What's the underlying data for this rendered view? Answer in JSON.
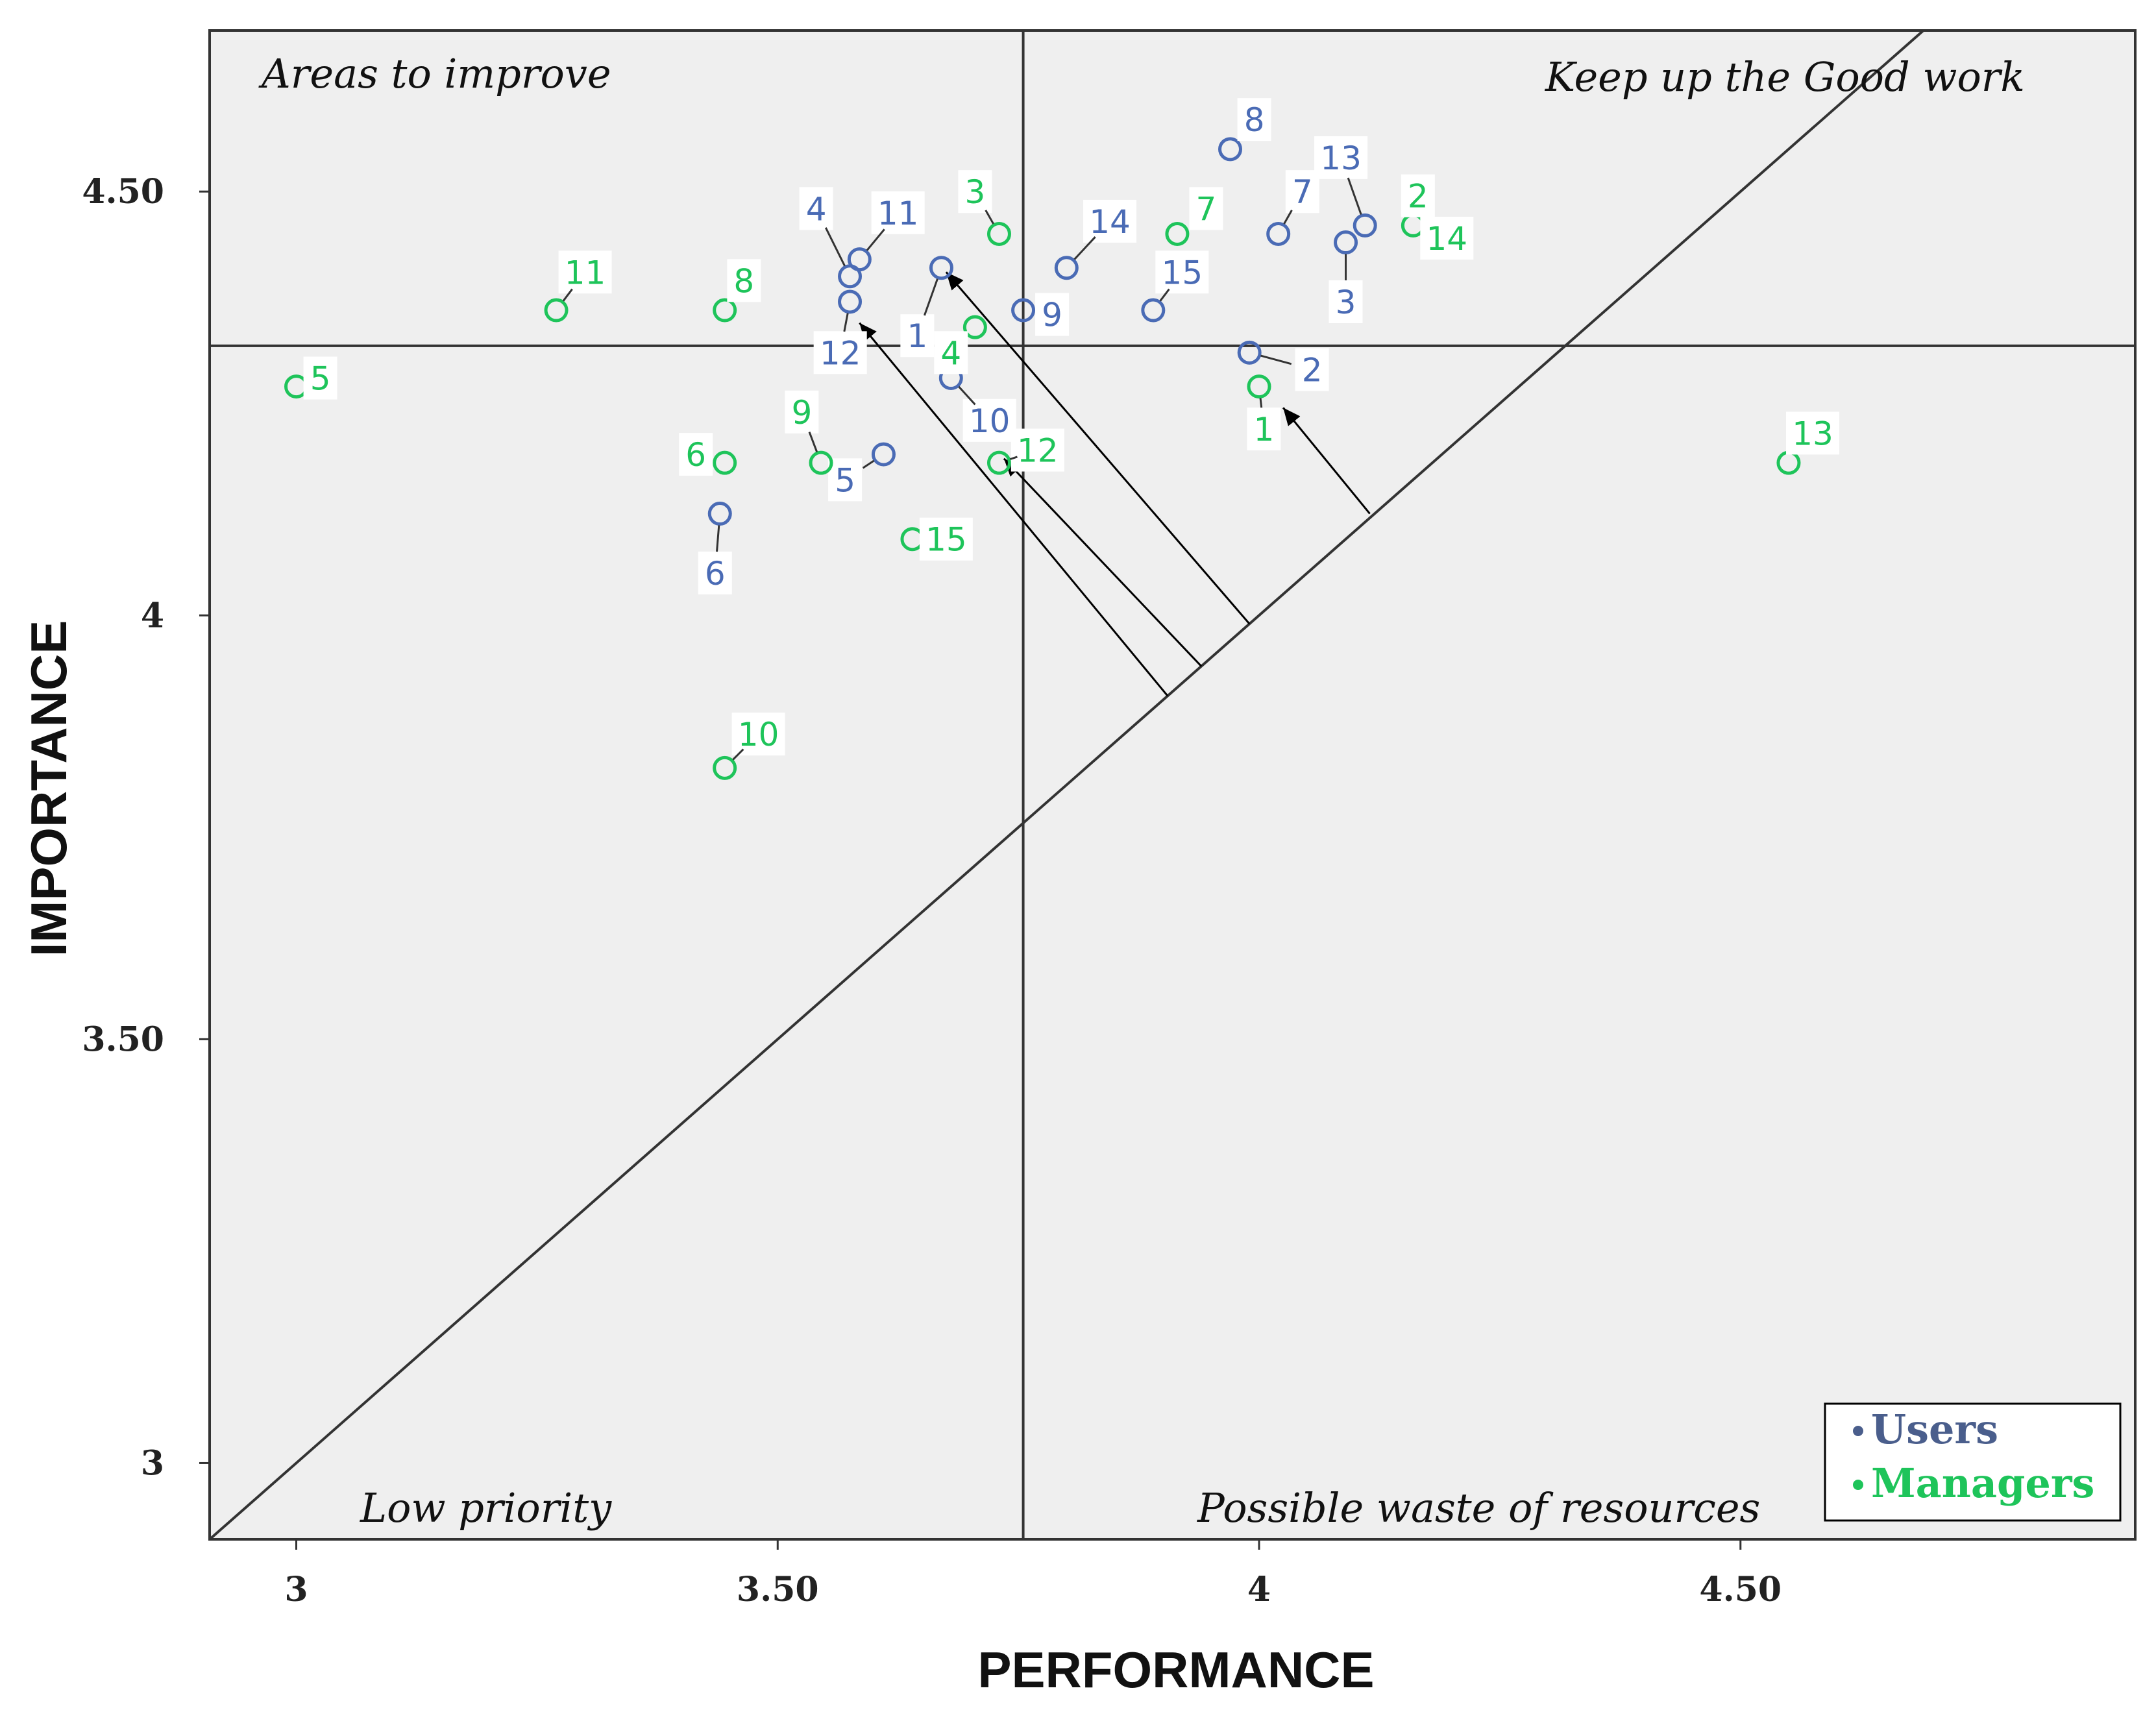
{
  "chart_data": {
    "type": "scatter",
    "title": "",
    "xlabel": "PERFORMANCE",
    "ylabel": "IMPORTANCE",
    "xlim": [
      2.91,
      4.91
    ],
    "ylim": [
      2.91,
      4.69
    ],
    "x_ticks": [
      {
        "value": 3,
        "label": "3"
      },
      {
        "value": 3.5,
        "label": "3.50"
      },
      {
        "value": 4,
        "label": "4"
      },
      {
        "value": 4.5,
        "label": "4.50"
      }
    ],
    "y_ticks": [
      {
        "value": 3,
        "label": "3"
      },
      {
        "value": 3.5,
        "label": "3.50"
      },
      {
        "value": 4,
        "label": "4"
      },
      {
        "value": 4.5,
        "label": "4.50"
      }
    ],
    "reference_lines": {
      "vertical_x": 3.755,
      "horizontal_y": 4.318,
      "diagonal": "y = x"
    },
    "quadrant_labels": {
      "top_left": "Areas to improve",
      "top_right": "Keep up the Good work",
      "bottom_left": "Low priority",
      "bottom_right": "Possible waste of resources"
    },
    "series": [
      {
        "name": "Users",
        "color": "#4a6bb5",
        "points": [
          {
            "id": "1",
            "x": 3.67,
            "y": 4.41,
            "lx": 3.645,
            "ly": 4.33
          },
          {
            "id": "2",
            "x": 3.99,
            "y": 4.31,
            "lx": 4.055,
            "ly": 4.29
          },
          {
            "id": "3",
            "x": 4.09,
            "y": 4.44,
            "lx": 4.09,
            "ly": 4.37
          },
          {
            "id": "4",
            "x": 3.575,
            "y": 4.4,
            "lx": 3.54,
            "ly": 4.48
          },
          {
            "id": "5",
            "x": 3.61,
            "y": 4.19,
            "lx": 3.57,
            "ly": 4.16
          },
          {
            "id": "6",
            "x": 3.44,
            "y": 4.12,
            "lx": 3.435,
            "ly": 4.05
          },
          {
            "id": "7",
            "x": 4.02,
            "y": 4.45,
            "lx": 4.045,
            "ly": 4.5
          },
          {
            "id": "8",
            "x": 3.97,
            "y": 4.55,
            "lx": 3.995,
            "ly": 4.585
          },
          {
            "id": "9",
            "x": 3.755,
            "y": 4.36,
            "lx": 3.785,
            "ly": 4.355
          },
          {
            "id": "10",
            "x": 3.68,
            "y": 4.28,
            "lx": 3.72,
            "ly": 4.23
          },
          {
            "id": "11",
            "x": 3.585,
            "y": 4.42,
            "lx": 3.625,
            "ly": 4.475
          },
          {
            "id": "12",
            "x": 3.575,
            "y": 4.37,
            "lx": 3.565,
            "ly": 4.31
          },
          {
            "id": "13",
            "x": 4.11,
            "y": 4.46,
            "lx": 4.085,
            "ly": 4.54
          },
          {
            "id": "14",
            "x": 3.8,
            "y": 4.41,
            "lx": 3.845,
            "ly": 4.465
          },
          {
            "id": "15",
            "x": 3.89,
            "y": 4.36,
            "lx": 3.92,
            "ly": 4.405
          }
        ]
      },
      {
        "name": "Managers",
        "color": "#1ec45a",
        "points": [
          {
            "id": "1",
            "x": 4.0,
            "y": 4.27,
            "lx": 4.005,
            "ly": 4.22
          },
          {
            "id": "2",
            "x": 4.16,
            "y": 4.46,
            "lx": 4.165,
            "ly": 4.495
          },
          {
            "id": "3",
            "x": 3.73,
            "y": 4.45,
            "lx": 3.705,
            "ly": 4.5
          },
          {
            "id": "4",
            "x": 3.705,
            "y": 4.34,
            "lx": 3.68,
            "ly": 4.31
          },
          {
            "id": "5",
            "x": 3.0,
            "y": 4.27,
            "lx": 3.025,
            "ly": 4.28
          },
          {
            "id": "6",
            "x": 3.445,
            "y": 4.18,
            "lx": 3.415,
            "ly": 4.19
          },
          {
            "id": "7",
            "x": 3.915,
            "y": 4.45,
            "lx": 3.945,
            "ly": 4.48
          },
          {
            "id": "8",
            "x": 3.445,
            "y": 4.36,
            "lx": 3.465,
            "ly": 4.395
          },
          {
            "id": "9",
            "x": 3.545,
            "y": 4.18,
            "lx": 3.525,
            "ly": 4.24
          },
          {
            "id": "10",
            "x": 3.445,
            "y": 3.82,
            "lx": 3.48,
            "ly": 3.86
          },
          {
            "id": "11",
            "x": 3.27,
            "y": 4.36,
            "lx": 3.3,
            "ly": 4.405
          },
          {
            "id": "12",
            "x": 3.73,
            "y": 4.18,
            "lx": 3.77,
            "ly": 4.195
          },
          {
            "id": "13",
            "x": 4.55,
            "y": 4.18,
            "lx": 4.575,
            "ly": 4.215
          },
          {
            "id": "14",
            "x": 4.18,
            "y": 4.45,
            "lx": 4.195,
            "ly": 4.445
          },
          {
            "id": "15",
            "x": 3.64,
            "y": 4.09,
            "lx": 3.675,
            "ly": 4.09
          }
        ]
      }
    ],
    "arrows": [
      {
        "from": [
          4.115,
          4.12
        ],
        "to": [
          4.025,
          4.245
        ]
      },
      {
        "from": [
          3.99,
          3.99
        ],
        "to": [
          3.675,
          4.405
        ]
      },
      {
        "from": [
          3.94,
          3.94
        ],
        "to": [
          3.735,
          4.185
        ]
      },
      {
        "from": [
          3.905,
          3.905
        ],
        "to": [
          3.585,
          4.345
        ]
      }
    ],
    "legend": {
      "position": "bottom-right",
      "entries": [
        {
          "label": "Users",
          "color": "#4a5e8c"
        },
        {
          "label": "Managers",
          "color": "#1ec45a"
        }
      ]
    }
  }
}
